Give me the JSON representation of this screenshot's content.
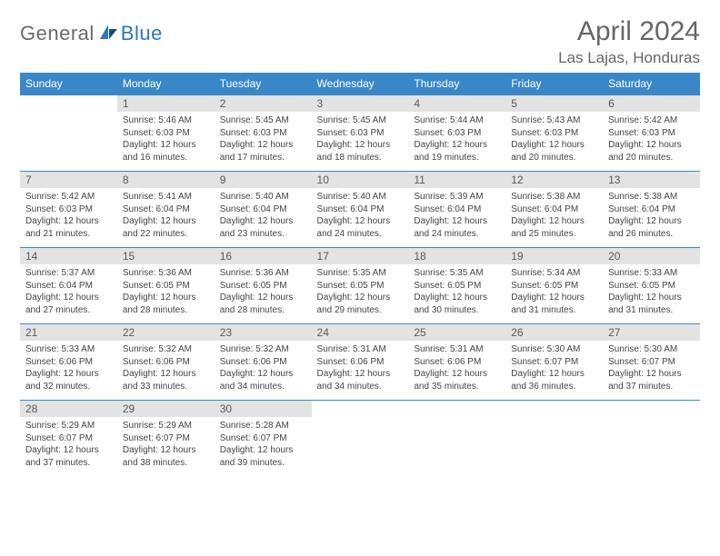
{
  "logo": {
    "general": "General",
    "blue": "Blue"
  },
  "title": "April 2024",
  "location": "Las Lajas, Honduras",
  "colors": {
    "header_bg": "#3a87c8",
    "header_text": "#ffffff",
    "daynum_bg": "#e3e3e3",
    "daynum_text": "#5a5a5a",
    "body_text": "#444444",
    "title_text": "#666666",
    "border": "#3a87c8"
  },
  "dayHeaders": [
    "Sunday",
    "Monday",
    "Tuesday",
    "Wednesday",
    "Thursday",
    "Friday",
    "Saturday"
  ],
  "weeks": [
    [
      null,
      {
        "n": "1",
        "sunrise": "5:46 AM",
        "sunset": "6:03 PM",
        "daylight": "12 hours and 16 minutes."
      },
      {
        "n": "2",
        "sunrise": "5:45 AM",
        "sunset": "6:03 PM",
        "daylight": "12 hours and 17 minutes."
      },
      {
        "n": "3",
        "sunrise": "5:45 AM",
        "sunset": "6:03 PM",
        "daylight": "12 hours and 18 minutes."
      },
      {
        "n": "4",
        "sunrise": "5:44 AM",
        "sunset": "6:03 PM",
        "daylight": "12 hours and 19 minutes."
      },
      {
        "n": "5",
        "sunrise": "5:43 AM",
        "sunset": "6:03 PM",
        "daylight": "12 hours and 20 minutes."
      },
      {
        "n": "6",
        "sunrise": "5:42 AM",
        "sunset": "6:03 PM",
        "daylight": "12 hours and 20 minutes."
      }
    ],
    [
      {
        "n": "7",
        "sunrise": "5:42 AM",
        "sunset": "6:03 PM",
        "daylight": "12 hours and 21 minutes."
      },
      {
        "n": "8",
        "sunrise": "5:41 AM",
        "sunset": "6:04 PM",
        "daylight": "12 hours and 22 minutes."
      },
      {
        "n": "9",
        "sunrise": "5:40 AM",
        "sunset": "6:04 PM",
        "daylight": "12 hours and 23 minutes."
      },
      {
        "n": "10",
        "sunrise": "5:40 AM",
        "sunset": "6:04 PM",
        "daylight": "12 hours and 24 minutes."
      },
      {
        "n": "11",
        "sunrise": "5:39 AM",
        "sunset": "6:04 PM",
        "daylight": "12 hours and 24 minutes."
      },
      {
        "n": "12",
        "sunrise": "5:38 AM",
        "sunset": "6:04 PM",
        "daylight": "12 hours and 25 minutes."
      },
      {
        "n": "13",
        "sunrise": "5:38 AM",
        "sunset": "6:04 PM",
        "daylight": "12 hours and 26 minutes."
      }
    ],
    [
      {
        "n": "14",
        "sunrise": "5:37 AM",
        "sunset": "6:04 PM",
        "daylight": "12 hours and 27 minutes."
      },
      {
        "n": "15",
        "sunrise": "5:36 AM",
        "sunset": "6:05 PM",
        "daylight": "12 hours and 28 minutes."
      },
      {
        "n": "16",
        "sunrise": "5:36 AM",
        "sunset": "6:05 PM",
        "daylight": "12 hours and 28 minutes."
      },
      {
        "n": "17",
        "sunrise": "5:35 AM",
        "sunset": "6:05 PM",
        "daylight": "12 hours and 29 minutes."
      },
      {
        "n": "18",
        "sunrise": "5:35 AM",
        "sunset": "6:05 PM",
        "daylight": "12 hours and 30 minutes."
      },
      {
        "n": "19",
        "sunrise": "5:34 AM",
        "sunset": "6:05 PM",
        "daylight": "12 hours and 31 minutes."
      },
      {
        "n": "20",
        "sunrise": "5:33 AM",
        "sunset": "6:05 PM",
        "daylight": "12 hours and 31 minutes."
      }
    ],
    [
      {
        "n": "21",
        "sunrise": "5:33 AM",
        "sunset": "6:06 PM",
        "daylight": "12 hours and 32 minutes."
      },
      {
        "n": "22",
        "sunrise": "5:32 AM",
        "sunset": "6:06 PM",
        "daylight": "12 hours and 33 minutes."
      },
      {
        "n": "23",
        "sunrise": "5:32 AM",
        "sunset": "6:06 PM",
        "daylight": "12 hours and 34 minutes."
      },
      {
        "n": "24",
        "sunrise": "5:31 AM",
        "sunset": "6:06 PM",
        "daylight": "12 hours and 34 minutes."
      },
      {
        "n": "25",
        "sunrise": "5:31 AM",
        "sunset": "6:06 PM",
        "daylight": "12 hours and 35 minutes."
      },
      {
        "n": "26",
        "sunrise": "5:30 AM",
        "sunset": "6:07 PM",
        "daylight": "12 hours and 36 minutes."
      },
      {
        "n": "27",
        "sunrise": "5:30 AM",
        "sunset": "6:07 PM",
        "daylight": "12 hours and 37 minutes."
      }
    ],
    [
      {
        "n": "28",
        "sunrise": "5:29 AM",
        "sunset": "6:07 PM",
        "daylight": "12 hours and 37 minutes."
      },
      {
        "n": "29",
        "sunrise": "5:29 AM",
        "sunset": "6:07 PM",
        "daylight": "12 hours and 38 minutes."
      },
      {
        "n": "30",
        "sunrise": "5:28 AM",
        "sunset": "6:07 PM",
        "daylight": "12 hours and 39 minutes."
      },
      null,
      null,
      null,
      null
    ]
  ],
  "labels": {
    "sunrise": "Sunrise:",
    "sunset": "Sunset:",
    "daylight": "Daylight:"
  }
}
